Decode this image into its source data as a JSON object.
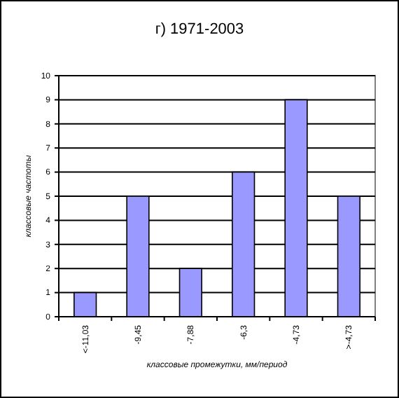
{
  "chart_data": {
    "type": "bar",
    "title": "г) 1971-2003",
    "categories": [
      "<-11,03",
      "-9,45",
      "-7,88",
      "-6,3",
      "-4,73",
      ">-4,73"
    ],
    "values": [
      1,
      5,
      2,
      6,
      9,
      5
    ],
    "color": "#9999ff",
    "ylim": [
      0,
      10
    ],
    "yticks": [
      0,
      1,
      2,
      3,
      4,
      5,
      6,
      7,
      8,
      9,
      10
    ],
    "grid": "y",
    "xlabel": "классовые промежутки, мм/период",
    "ylabel": "классовые частоты"
  }
}
